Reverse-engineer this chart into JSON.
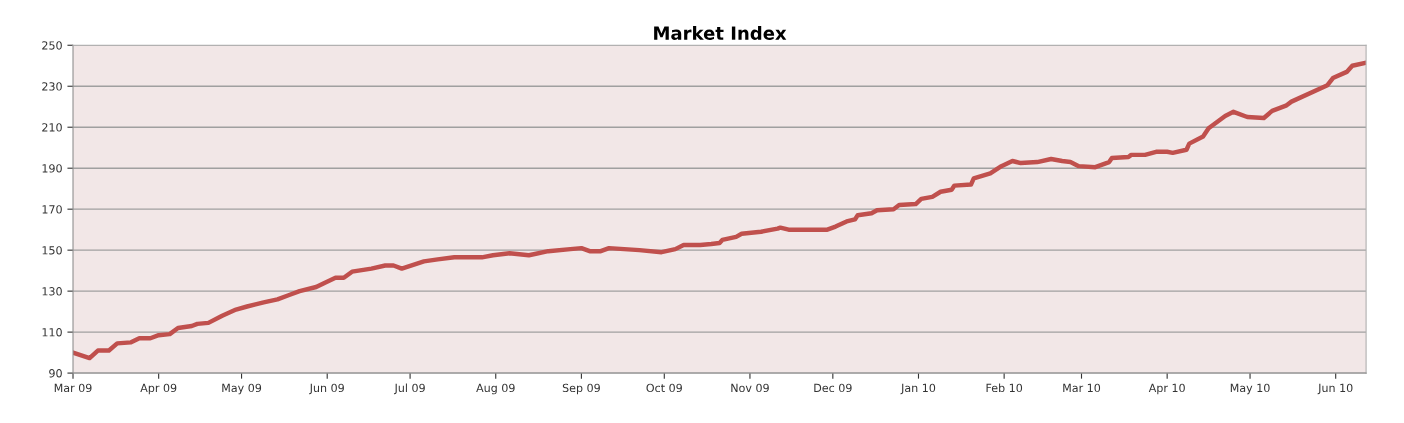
{
  "chart_data": {
    "type": "line",
    "title": "Market Index",
    "x": [
      "2009-03-01",
      "2009-03-07",
      "2009-03-10",
      "2009-03-14",
      "2009-03-17",
      "2009-03-22",
      "2009-03-25",
      "2009-03-29",
      "2009-04-01",
      "2009-04-05",
      "2009-04-08",
      "2009-04-13",
      "2009-04-15",
      "2009-04-19",
      "2009-04-24",
      "2009-04-29",
      "2009-05-03",
      "2009-05-09",
      "2009-05-14",
      "2009-05-18",
      "2009-05-22",
      "2009-05-28",
      "2009-05-31",
      "2009-06-04",
      "2009-06-07",
      "2009-06-10",
      "2009-06-17",
      "2009-06-22",
      "2009-06-25",
      "2009-06-28",
      "2009-07-06",
      "2009-07-11",
      "2009-07-17",
      "2009-07-27",
      "2009-07-31",
      "2009-08-06",
      "2009-08-13",
      "2009-08-20",
      "2009-08-28",
      "2009-09-01",
      "2009-09-04",
      "2009-09-08",
      "2009-09-11",
      "2009-09-22",
      "2009-09-30",
      "2009-10-05",
      "2009-10-08",
      "2009-10-14",
      "2009-10-18",
      "2009-10-21",
      "2009-10-22",
      "2009-10-27",
      "2009-10-29",
      "2009-11-05",
      "2009-11-11",
      "2009-11-12",
      "2009-11-15",
      "2009-11-19",
      "2009-11-29",
      "2009-12-02",
      "2009-12-06",
      "2009-12-09",
      "2009-12-10",
      "2009-12-15",
      "2009-12-17",
      "2009-12-23",
      "2009-12-25",
      "2009-12-31",
      "2010-01-02",
      "2010-01-06",
      "2010-01-09",
      "2010-01-13",
      "2010-01-14",
      "2010-01-20",
      "2010-01-21",
      "2010-01-27",
      "2010-01-31",
      "2010-02-04",
      "2010-02-07",
      "2010-02-13",
      "2010-02-18",
      "2010-02-22",
      "2010-02-25",
      "2010-02-28",
      "2010-03-06",
      "2010-03-11",
      "2010-03-12",
      "2010-03-18",
      "2010-03-19",
      "2010-03-24",
      "2010-03-28",
      "2010-04-01",
      "2010-04-03",
      "2010-04-08",
      "2010-04-09",
      "2010-04-14",
      "2010-04-16",
      "2010-04-22",
      "2010-04-25",
      "2010-04-30",
      "2010-05-06",
      "2010-05-09",
      "2010-05-14",
      "2010-05-16",
      "2010-05-29",
      "2010-05-31",
      "2010-06-05",
      "2010-06-07",
      "2010-06-12"
    ],
    "series": [
      {
        "color": "#c0504d",
        "values": [
          100,
          97.3,
          101,
          101,
          104.5,
          105,
          107,
          107,
          108.5,
          109,
          112,
          113,
          114,
          114.5,
          118,
          121,
          122.5,
          124.5,
          126,
          128,
          130,
          132,
          134,
          136.5,
          136.5,
          139.5,
          141,
          142.5,
          142.5,
          141,
          144.5,
          145.5,
          146.5,
          146.5,
          147.5,
          148.5,
          147.5,
          149.5,
          150.5,
          151,
          149.5,
          149.5,
          151,
          150,
          149,
          150.5,
          152.5,
          152.5,
          153,
          153.5,
          155,
          156.5,
          158,
          159,
          160.5,
          161,
          160,
          160,
          160,
          161.5,
          164,
          165,
          167,
          168,
          169.5,
          170,
          172,
          172.5,
          175,
          176,
          178.5,
          179.5,
          181.5,
          182,
          185,
          187.5,
          191,
          193.5,
          192.5,
          193,
          194.5,
          193.5,
          193,
          191,
          190.5,
          193,
          195,
          195.5,
          196.5,
          196.5,
          198,
          198,
          197.5,
          199,
          202,
          205.5,
          209.5,
          215.5,
          217.5,
          215,
          214.5,
          218,
          220.5,
          222.5,
          230.5,
          234,
          237,
          240,
          241.5
        ]
      }
    ],
    "xlim": [
      "2009-03-01",
      "2010-06-12"
    ],
    "xticks": [
      {
        "value": "2009-03-01",
        "label": "Mar 09"
      },
      {
        "value": "2009-04-01",
        "label": "Apr 09"
      },
      {
        "value": "2009-05-01",
        "label": "May 09"
      },
      {
        "value": "2009-06-01",
        "label": "Jun 09"
      },
      {
        "value": "2009-07-01",
        "label": "Jul 09"
      },
      {
        "value": "2009-08-01",
        "label": "Aug 09"
      },
      {
        "value": "2009-09-01",
        "label": "Sep 09"
      },
      {
        "value": "2009-10-01",
        "label": "Oct 09"
      },
      {
        "value": "2009-11-01",
        "label": "Nov 09"
      },
      {
        "value": "2009-12-01",
        "label": "Dec 09"
      },
      {
        "value": "2010-01-01",
        "label": "Jan 10"
      },
      {
        "value": "2010-02-01",
        "label": "Feb 10"
      },
      {
        "value": "2010-03-01",
        "label": "Mar 10"
      },
      {
        "value": "2010-04-01",
        "label": "Apr 10"
      },
      {
        "value": "2010-05-01",
        "label": "May 10"
      },
      {
        "value": "2010-06-01",
        "label": "Jun 10"
      }
    ],
    "ylim": [
      90,
      250
    ],
    "yticks": [
      90,
      110,
      130,
      150,
      170,
      190,
      210,
      230,
      250
    ],
    "grid": "y",
    "marker": "none",
    "line_style": "solid"
  }
}
